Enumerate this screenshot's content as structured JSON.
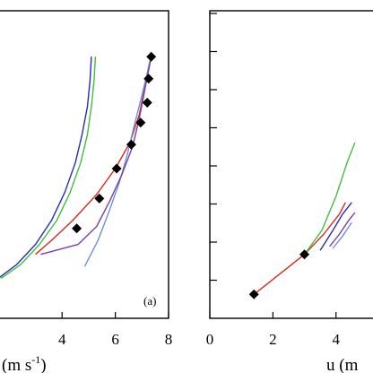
{
  "chart_data": [
    {
      "type": "line",
      "panel_label": "(a)",
      "xlabel": "(m s-1)",
      "xlabel_superscript": "-1",
      "xlim": [
        1.6,
        8
      ],
      "x_ticks": [
        4,
        6,
        8
      ],
      "y_tick_count": 9,
      "marker_color": "#000000",
      "series": [
        {
          "color": "#2a2ab8",
          "x": [
            1.6,
            2.3,
            3.0,
            3.6,
            4.1,
            4.5,
            4.75,
            4.95,
            5.05,
            5.1
          ],
          "y": [
            1.0,
            1.35,
            1.85,
            2.45,
            3.15,
            3.9,
            4.6,
            5.3,
            5.95,
            6.55
          ]
        },
        {
          "color": "#3cc23c",
          "x": [
            1.7,
            2.45,
            3.15,
            3.8,
            4.3,
            4.7,
            4.95,
            5.1,
            5.2,
            5.25
          ],
          "y": [
            1.0,
            1.35,
            1.85,
            2.45,
            3.15,
            3.9,
            4.6,
            5.3,
            5.95,
            6.55
          ]
        },
        {
          "color": "#d72a1e",
          "x": [
            3.0,
            3.6,
            4.4,
            5.3,
            6.0,
            6.55,
            6.9,
            7.1,
            7.25,
            7.35
          ],
          "y": [
            1.6,
            1.95,
            2.45,
            3.1,
            3.75,
            4.4,
            5.1,
            5.75,
            6.25,
            6.55
          ]
        },
        {
          "color": "#6e8fdc",
          "x": [
            4.85,
            5.35,
            5.75,
            6.15,
            6.45,
            6.7,
            6.95,
            7.15,
            7.3
          ],
          "y": [
            1.3,
            1.95,
            2.65,
            3.4,
            4.1,
            4.8,
            5.45,
            6.0,
            6.45
          ]
        },
        {
          "color": "#7a3fa6",
          "x": [
            3.2,
            4.6,
            5.3,
            5.8,
            6.25,
            6.65,
            6.9,
            7.1,
            7.25,
            7.35
          ],
          "y": [
            1.6,
            1.85,
            2.3,
            2.95,
            3.6,
            4.3,
            5.0,
            5.7,
            6.2,
            6.55
          ]
        }
      ],
      "markers": {
        "x": [
          4.55,
          5.4,
          6.05,
          6.6,
          6.95,
          7.2,
          7.25,
          7.35
        ],
        "y": [
          2.25,
          3.0,
          3.75,
          4.35,
          4.9,
          5.4,
          6.0,
          6.55
        ]
      }
    },
    {
      "type": "line",
      "xlabel": "u (m",
      "xlim": [
        0,
        5.4
      ],
      "x_ticks": [
        0,
        2,
        4
      ],
      "y_tick_count": 9,
      "marker_color": "#000000",
      "series": [
        {
          "color": "#d72a1e",
          "x": [
            1.4,
            3.0,
            3.6,
            4.1,
            4.3
          ],
          "y": [
            0.6,
            1.6,
            2.1,
            2.6,
            2.9
          ]
        },
        {
          "color": "#3cc23c",
          "x": [
            3.0,
            3.55,
            4.0,
            4.35,
            4.6
          ],
          "y": [
            1.6,
            2.2,
            3.05,
            3.9,
            4.4
          ]
        },
        {
          "color": "#2a2ab8",
          "x": [
            3.5,
            3.9,
            4.2,
            4.5
          ],
          "y": [
            1.7,
            2.2,
            2.6,
            2.9
          ]
        },
        {
          "color": "#7a3fa6",
          "x": [
            3.8,
            4.1,
            4.4,
            4.6
          ],
          "y": [
            1.8,
            2.1,
            2.45,
            2.65
          ]
        },
        {
          "color": "#6e8fdc",
          "x": [
            3.9,
            4.2,
            4.5
          ],
          "y": [
            1.75,
            2.05,
            2.4
          ]
        }
      ],
      "markers": {
        "x": [
          1.4,
          3.0
        ],
        "y": [
          0.6,
          1.6
        ]
      }
    }
  ]
}
